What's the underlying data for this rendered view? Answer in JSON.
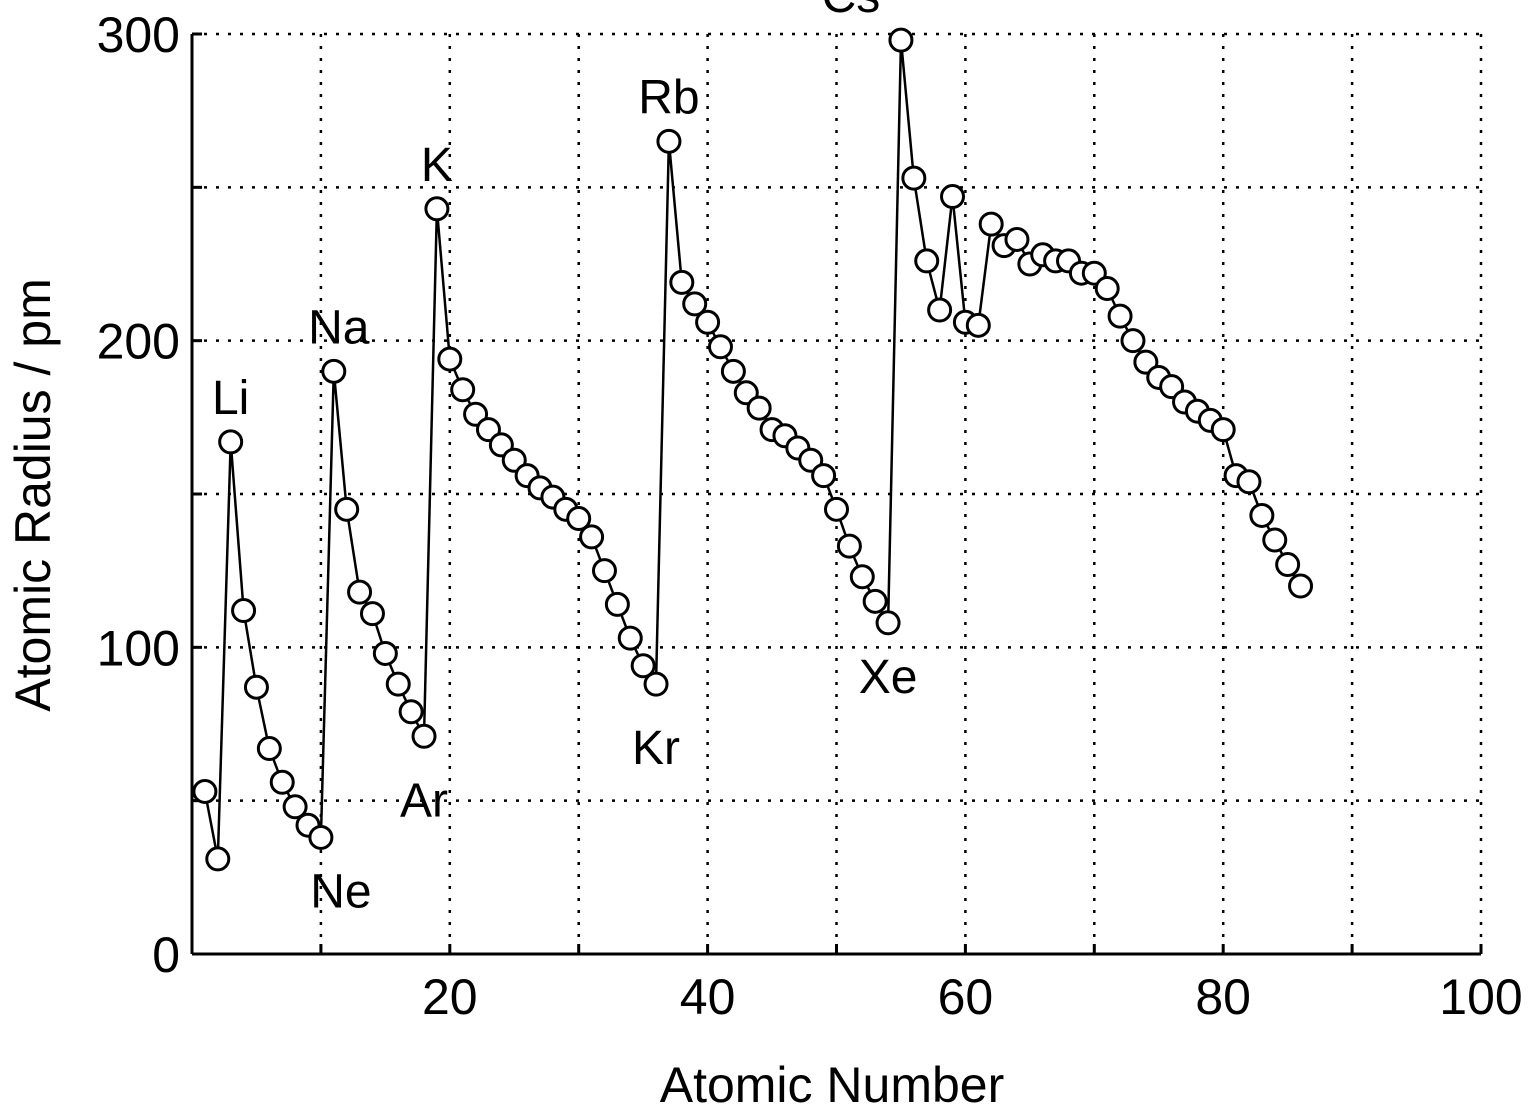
{
  "chart_data": {
    "type": "line",
    "xlabel": "Atomic Number",
    "ylabel": "Atomic Radius / pm",
    "xlim": [
      0,
      100
    ],
    "ylim": [
      0,
      300
    ],
    "xticks": [
      20,
      40,
      60,
      80,
      100
    ],
    "yticks": [
      0,
      100,
      200,
      300
    ],
    "grid": true,
    "marker": "open-circle",
    "series": [
      {
        "x": [
          1,
          2,
          3,
          4,
          5,
          6,
          7,
          8,
          9,
          10,
          11,
          12,
          13,
          14,
          15,
          16,
          17,
          18,
          19,
          20,
          21,
          22,
          23,
          24,
          25,
          26,
          27,
          28,
          29,
          30,
          31,
          32,
          33,
          34,
          35,
          36,
          37,
          38,
          39,
          40,
          41,
          42,
          43,
          44,
          45,
          46,
          47,
          48,
          49,
          50,
          51,
          52,
          53,
          54,
          55,
          56,
          57,
          58,
          59,
          60,
          61,
          62,
          63,
          64,
          65,
          66,
          67,
          68,
          69,
          70,
          71,
          72,
          73,
          74,
          75,
          76,
          77,
          78,
          79,
          80,
          81,
          82,
          83,
          84,
          85,
          86
        ],
        "values": [
          53,
          31,
          167,
          112,
          87,
          67,
          56,
          48,
          42,
          38,
          190,
          145,
          118,
          111,
          98,
          88,
          79,
          71,
          243,
          194,
          184,
          176,
          171,
          166,
          161,
          156,
          152,
          149,
          145,
          142,
          136,
          125,
          114,
          103,
          94,
          88,
          265,
          219,
          212,
          206,
          198,
          190,
          183,
          178,
          171,
          169,
          165,
          161,
          156,
          145,
          133,
          123,
          115,
          108,
          298,
          253,
          226,
          210,
          247,
          206,
          205,
          238,
          231,
          233,
          225,
          228,
          226,
          226,
          222,
          222,
          217,
          208,
          200,
          193,
          188,
          185,
          180,
          177,
          174,
          171,
          156,
          154,
          143,
          135,
          127,
          120
        ]
      }
    ],
    "annotations": [
      {
        "label": "Li",
        "x": 3,
        "y": 167
      },
      {
        "label": "Na",
        "x": 11,
        "y": 190
      },
      {
        "label": "K",
        "x": 19,
        "y": 243
      },
      {
        "label": "Rb",
        "x": 37,
        "y": 265
      },
      {
        "label": "Cs",
        "x": 55,
        "y": 298
      },
      {
        "label": "Ne",
        "x": 10,
        "y": 38
      },
      {
        "label": "Ar",
        "x": 18,
        "y": 71
      },
      {
        "label": "Kr",
        "x": 36,
        "y": 88
      },
      {
        "label": "Xe",
        "x": 54,
        "y": 108
      }
    ]
  }
}
